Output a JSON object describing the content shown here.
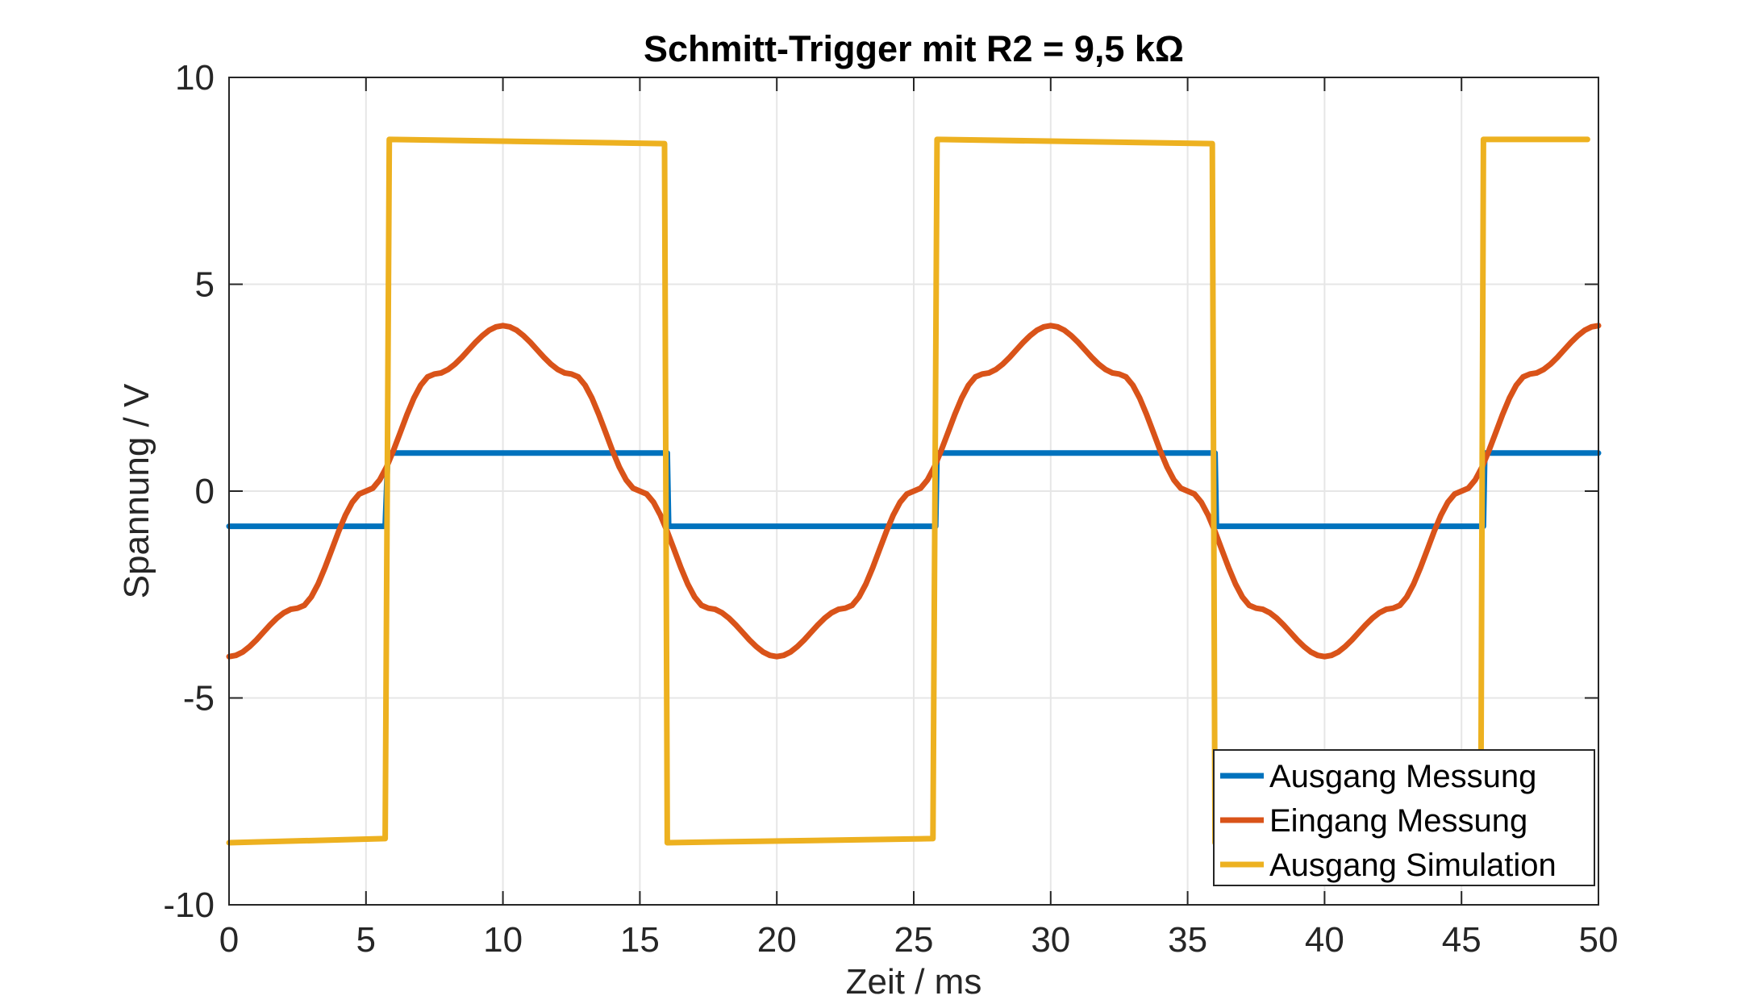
{
  "chart_data": {
    "type": "line",
    "title": "Schmitt-Trigger mit R2 = 9,5 kΩ",
    "xlabel": "Zeit / ms",
    "ylabel": "Spannung / V",
    "xlim": [
      0,
      50
    ],
    "ylim": [
      -10,
      10
    ],
    "xticks": [
      0,
      5,
      10,
      15,
      20,
      25,
      30,
      35,
      40,
      45,
      50
    ],
    "yticks": [
      -10,
      -5,
      0,
      5,
      10
    ],
    "xtick_labels": [
      "0",
      "5",
      "10",
      "15",
      "20",
      "25",
      "30",
      "35",
      "40",
      "45",
      "50"
    ],
    "ytick_labels": [
      "-10",
      "-5",
      "0",
      "5",
      "10"
    ],
    "grid": true,
    "legend_position": "bottom-right",
    "series": [
      {
        "name": "Ausgang Messung",
        "color": "#0072BD",
        "x": [
          0,
          5.7,
          5.8,
          16.0,
          16.05,
          25.8,
          25.85,
          36.0,
          36.05,
          45.8,
          45.85,
          50
        ],
        "y": [
          -0.85,
          -0.85,
          0.92,
          0.92,
          -0.85,
          -0.85,
          0.92,
          0.92,
          -0.85,
          -0.85,
          0.92,
          0.92
        ]
      },
      {
        "name": "Eingang Messung",
        "color": "#D95319",
        "x": [
          0,
          2.5,
          5,
          7.5,
          10,
          12.5,
          15,
          17.5,
          20,
          22.5,
          25,
          27.5,
          30,
          32.5,
          35,
          37.5,
          40,
          42.5,
          45,
          47.5,
          50
        ],
        "y": [
          -4.0,
          -2.83,
          0,
          2.83,
          4.0,
          2.83,
          0,
          -2.83,
          -4.0,
          -2.83,
          0,
          2.83,
          4.0,
          2.83,
          0,
          -2.83,
          -4.0,
          -2.83,
          0,
          2.83,
          4.0
        ]
      },
      {
        "name": "Ausgang Simulation",
        "color": "#EDB120",
        "x": [
          0,
          5.7,
          5.85,
          15.9,
          16.0,
          25.7,
          25.85,
          35.9,
          36.0,
          45.7,
          45.8,
          49.6
        ],
        "y": [
          -8.5,
          -8.4,
          8.5,
          8.4,
          -8.5,
          -8.4,
          8.5,
          8.4,
          -8.5,
          -8.5,
          8.5,
          8.5
        ]
      }
    ]
  }
}
